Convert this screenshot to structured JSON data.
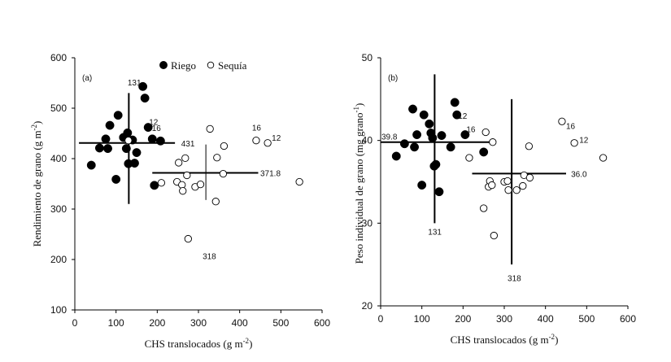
{
  "chart_data": [
    {
      "type": "scatter",
      "panel_label": "(a)",
      "xlabel": "CHS translocados (g m",
      "xlabel_sup": "-2",
      "xlabel_end": ")",
      "ylabel": "Rendimiento de grano (g m",
      "ylabel_sup": "-2",
      "ylabel_end": ")",
      "xlim": [
        0,
        600
      ],
      "ylim": [
        100,
        600
      ],
      "xticks": [
        "0",
        "100",
        "200",
        "300",
        "400",
        "500",
        "600"
      ],
      "yticks": [
        "100",
        "200",
        "300",
        "400",
        "500",
        "600"
      ],
      "xtick_values": [
        0,
        100,
        200,
        300,
        400,
        500,
        600
      ],
      "ytick_values": [
        100,
        200,
        300,
        400,
        500,
        600
      ],
      "legend": {
        "position": "top-center",
        "entries": [
          {
            "label": "Riego",
            "marker": "filled-circle"
          },
          {
            "label": "Sequía",
            "marker": "open-circle"
          }
        ]
      },
      "series": [
        {
          "name": "Riego",
          "marker": "filled",
          "points": [
            [
              40,
              387
            ],
            [
              60,
              421
            ],
            [
              75,
              439
            ],
            [
              80,
              420
            ],
            [
              85,
              466
            ],
            [
              100,
              359
            ],
            [
              105,
              486
            ],
            [
              118,
              442
            ],
            [
              125,
              420
            ],
            [
              128,
              451
            ],
            [
              130,
              390
            ],
            [
              140,
              437
            ],
            [
              145,
              391
            ],
            [
              150,
              412
            ],
            [
              165,
              543
            ],
            [
              170,
              520
            ],
            [
              178,
              462
            ],
            [
              188,
              439
            ],
            [
              193,
              347
            ],
            [
              208,
              435
            ]
          ]
        },
        {
          "name": "Sequía",
          "marker": "open",
          "points": [
            [
              130,
              436
            ],
            [
              210,
              352
            ],
            [
              248,
              354
            ],
            [
              252,
              392
            ],
            [
              260,
              348
            ],
            [
              262,
              336
            ],
            [
              268,
              401
            ],
            [
              272,
              367
            ],
            [
              275,
              241
            ],
            [
              292,
              344
            ],
            [
              305,
              349
            ],
            [
              328,
              459
            ],
            [
              342,
              315
            ],
            [
              345,
              402
            ],
            [
              360,
              370
            ],
            [
              362,
              425
            ],
            [
              440,
              436
            ],
            [
              468,
              431
            ],
            [
              545,
              354
            ]
          ]
        }
      ],
      "reference_lines": [
        {
          "orientation": "horizontal",
          "value": 431,
          "x_from": 10,
          "x_to": 243,
          "weight": "bold"
        },
        {
          "orientation": "vertical",
          "value": 131,
          "y_from": 310,
          "y_to": 530,
          "weight": "bold"
        },
        {
          "orientation": "horizontal",
          "value": 371.8,
          "x_from": 188,
          "x_to": 445,
          "weight": "bold"
        },
        {
          "orientation": "vertical",
          "value": 318,
          "y_from": 318,
          "y_to": 428,
          "weight": "thin"
        }
      ],
      "annotations": [
        {
          "text": "131",
          "x": 128,
          "y": 552
        },
        {
          "text": "431",
          "x": 258,
          "y": 431
        },
        {
          "text": "371.8",
          "x": 450,
          "y": 371.8
        },
        {
          "text": "318",
          "x": 310,
          "y": 207
        },
        {
          "text": "12",
          "x": 180,
          "y": 473
        },
        {
          "text": "16",
          "x": 187,
          "y": 461
        },
        {
          "text": "16",
          "x": 430,
          "y": 462
        },
        {
          "text": "12",
          "x": 478,
          "y": 442
        }
      ]
    },
    {
      "type": "scatter",
      "panel_label": "(b)",
      "xlabel": "CHS translocados (g m",
      "xlabel_sup": "-2",
      "xlabel_end": ")",
      "ylabel": "Peso individual  de grano (mg grano",
      "ylabel_sup": "-1",
      "ylabel_end": ")",
      "xlim": [
        0,
        600
      ],
      "ylim": [
        20,
        50
      ],
      "xticks": [
        "0",
        "100",
        "200",
        "300",
        "400",
        "500",
        "600"
      ],
      "yticks": [
        "20",
        "30",
        "40",
        "50"
      ],
      "xtick_values": [
        0,
        100,
        200,
        300,
        400,
        500,
        600
      ],
      "ytick_values": [
        20,
        30,
        40,
        50
      ],
      "series": [
        {
          "name": "Riego",
          "marker": "filled",
          "points": [
            [
              38,
              38.1
            ],
            [
              58,
              39.6
            ],
            [
              78,
              43.8
            ],
            [
              82,
              39.2
            ],
            [
              88,
              40.7
            ],
            [
              100,
              34.6
            ],
            [
              105,
              43.1
            ],
            [
              118,
              42.0
            ],
            [
              122,
              40.9
            ],
            [
              126,
              40.3
            ],
            [
              130,
              36.9
            ],
            [
              134,
              37.1
            ],
            [
              142,
              33.8
            ],
            [
              148,
              40.6
            ],
            [
              170,
              39.2
            ],
            [
              180,
              44.6
            ],
            [
              185,
              43.1
            ],
            [
              205,
              40.7
            ],
            [
              250,
              38.6
            ]
          ]
        },
        {
          "name": "Sequía",
          "marker": "open",
          "points": [
            [
              215,
              37.9
            ],
            [
              250,
              31.8
            ],
            [
              255,
              41.0
            ],
            [
              262,
              34.4
            ],
            [
              265,
              35.1
            ],
            [
              270,
              34.6
            ],
            [
              272,
              39.8
            ],
            [
              275,
              28.5
            ],
            [
              300,
              35.0
            ],
            [
              308,
              35.1
            ],
            [
              310,
              34.0
            ],
            [
              330,
              34.0
            ],
            [
              345,
              34.5
            ],
            [
              348,
              35.8
            ],
            [
              360,
              39.3
            ],
            [
              362,
              35.5
            ],
            [
              440,
              42.3
            ],
            [
              470,
              39.7
            ],
            [
              540,
              37.9
            ]
          ]
        }
      ],
      "reference_lines": [
        {
          "orientation": "horizontal",
          "value": 39.8,
          "x_from": 0,
          "x_to": 270,
          "weight": "bold"
        },
        {
          "orientation": "vertical",
          "value": 131,
          "y_from": 30,
          "y_to": 48,
          "weight": "bold"
        },
        {
          "orientation": "horizontal",
          "value": 36.0,
          "x_from": 222,
          "x_to": 450,
          "weight": "bold"
        },
        {
          "orientation": "vertical",
          "value": 318,
          "y_from": 25,
          "y_to": 45,
          "weight": "bold"
        }
      ],
      "annotations": [
        {
          "text": "39.8",
          "x": 2,
          "y": 40.5
        },
        {
          "text": "131",
          "x": 115,
          "y": 29.0
        },
        {
          "text": "12",
          "x": 188,
          "y": 43.0
        },
        {
          "text": "16",
          "x": 208,
          "y": 41.4
        },
        {
          "text": "36.0",
          "x": 462,
          "y": 36.0
        },
        {
          "text": "318",
          "x": 308,
          "y": 23.4
        },
        {
          "text": "16",
          "x": 450,
          "y": 41.8
        },
        {
          "text": "12",
          "x": 482,
          "y": 40.1
        }
      ]
    }
  ]
}
